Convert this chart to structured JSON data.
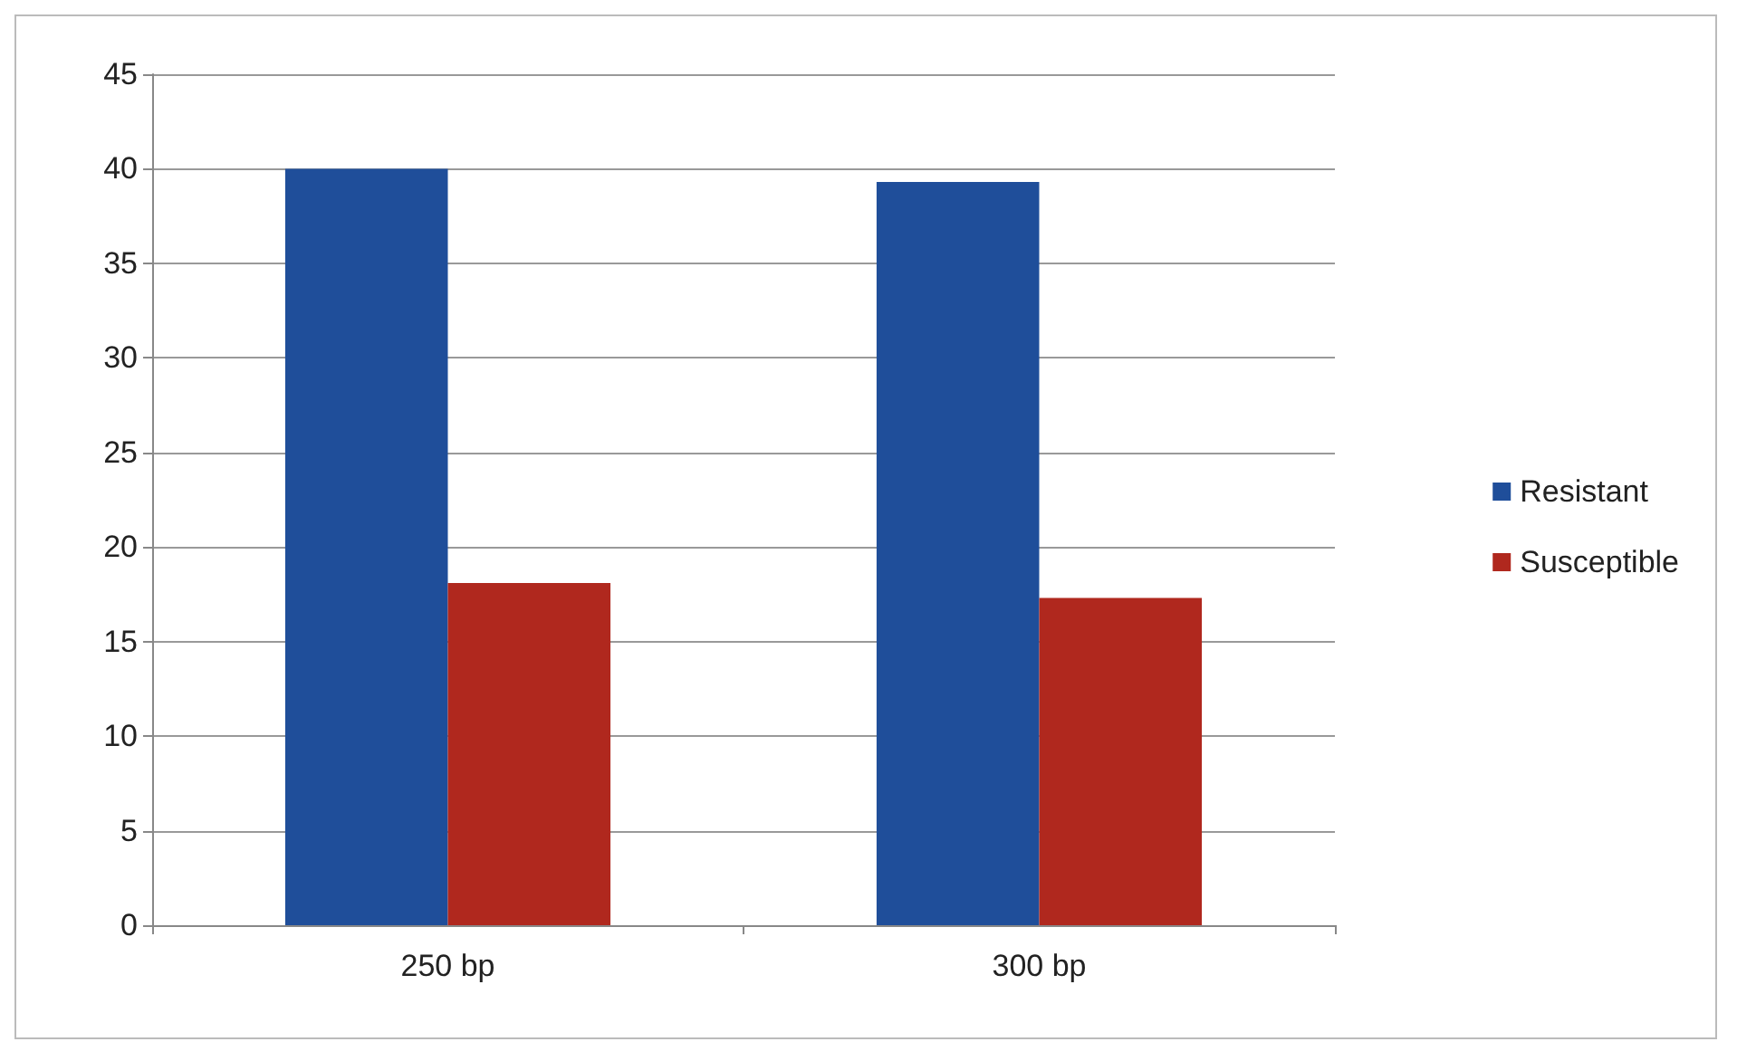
{
  "chart_data": {
    "type": "bar",
    "categories": [
      "250 bp",
      "300 bp"
    ],
    "series": [
      {
        "name": "Resistant",
        "color": "#1f4e9a",
        "values": [
          40,
          39.3
        ]
      },
      {
        "name": "Susceptible",
        "color": "#b0281e",
        "values": [
          18.1,
          17.3
        ]
      }
    ],
    "ylim": [
      0,
      45
    ],
    "yticks": [
      0,
      5,
      10,
      15,
      20,
      25,
      30,
      35,
      40,
      45
    ],
    "grid": "y",
    "legend": "right"
  }
}
